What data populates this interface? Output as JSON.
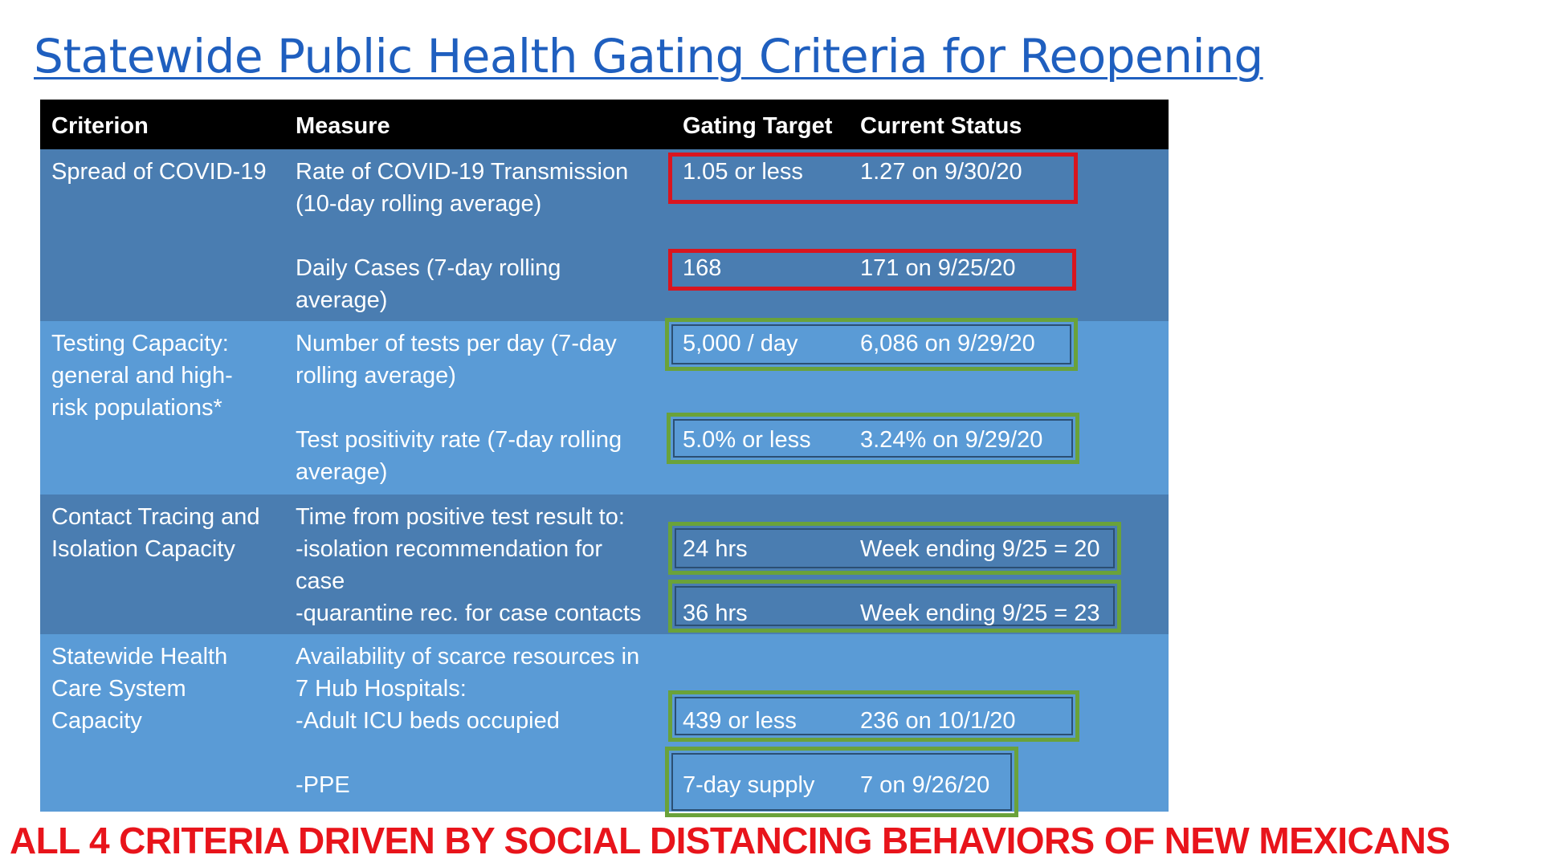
{
  "title": "Statewide Public Health Gating Criteria for Reopening",
  "table": {
    "headers": {
      "criterion": "Criterion",
      "measure": "Measure",
      "target": "Gating Target",
      "status": "Current Status"
    },
    "sections": [
      {
        "criterion": [
          "Spread of COVID-19"
        ],
        "rows": [
          {
            "measure": [
              "Rate of COVID-19 Transmission",
              "(10-day rolling average)"
            ],
            "target": "1.05 or less",
            "status": "1.27 on 9/30/20",
            "box_color": "red"
          },
          {
            "measure": [
              "Daily Cases (7-day rolling",
              "average)"
            ],
            "target": "168",
            "status": "171 on 9/25/20",
            "box_color": "red"
          }
        ]
      },
      {
        "criterion": [
          "Testing Capacity:",
          "general and high-",
          "risk populations*"
        ],
        "rows": [
          {
            "measure": [
              "Number of tests per day (7-day",
              "rolling average)"
            ],
            "target": "5,000 / day",
            "status": "6,086 on 9/29/20",
            "box_color": "green"
          },
          {
            "measure": [
              "Test positivity rate  (7-day rolling",
              "average)"
            ],
            "target": "5.0% or less",
            "status": "3.24% on 9/29/20",
            "box_color": "green"
          }
        ]
      },
      {
        "criterion": [
          "Contact Tracing and",
          "Isolation Capacity"
        ],
        "measure_intro": "Time from positive test result to:",
        "rows": [
          {
            "measure": [
              "-isolation recommendation for",
              "case"
            ],
            "target": "24 hrs",
            "status": "Week ending 9/25 = 20",
            "box_color": "green"
          },
          {
            "measure": [
              "-quarantine rec. for case contacts"
            ],
            "target": "36 hrs",
            "status": "Week ending 9/25 = 23",
            "box_color": "green"
          }
        ]
      },
      {
        "criterion": [
          "Statewide Health",
          "Care System",
          "Capacity"
        ],
        "measure_intro": [
          "Availability of scarce resources in",
          "7 Hub Hospitals:"
        ],
        "rows": [
          {
            "measure": [
              "-Adult ICU beds occupied"
            ],
            "target": "439 or less",
            "status": "236 on 10/1/20",
            "box_color": "green"
          },
          {
            "measure": [
              "-PPE"
            ],
            "target": "7-day supply",
            "status": "7 on 9/26/20",
            "box_color": "green"
          }
        ]
      }
    ]
  },
  "banner": "ALL 4 CRITERIA DRIVEN BY SOCIAL DISTANCING BEHAVIORS OF NEW MEXICANS",
  "colors": {
    "title": "#1f5fbf",
    "header_bg": "#000000",
    "section_dark": "#4a7db1",
    "section_light": "#5a9bd6",
    "box_red": "#d9151f",
    "box_green": "#6aa23a",
    "banner": "#e8141b"
  }
}
